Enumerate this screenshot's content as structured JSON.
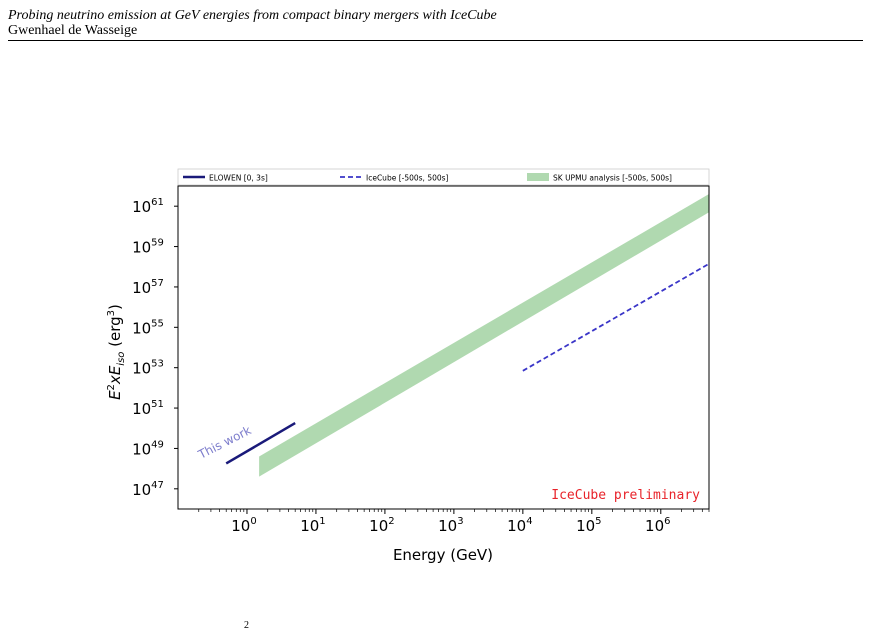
{
  "header": {
    "title": "Probing neutrino emission at GeV energies from compact binary mergers with IceCube",
    "author": "Gwenhael de Wasseige"
  },
  "chart_data": {
    "type": "line",
    "xlabel": "Energy (GeV)",
    "ylabel_parts": {
      "base": "E",
      "sup1": "2",
      "mid": "xE",
      "sub": "iso",
      "unit": " (erg",
      "sup2": "3",
      "close": ")"
    },
    "x_scale": "log",
    "y_scale": "log",
    "xlim": [
      0.1,
      5000000
    ],
    "ylim": [
      1e+46,
      1e+62
    ],
    "x_ticks": [
      {
        "value": 1,
        "base": "10",
        "exp": "0"
      },
      {
        "value": 10,
        "base": "10",
        "exp": "1"
      },
      {
        "value": 100,
        "base": "10",
        "exp": "2"
      },
      {
        "value": 1000,
        "base": "10",
        "exp": "3"
      },
      {
        "value": 10000,
        "base": "10",
        "exp": "4"
      },
      {
        "value": 100000,
        "base": "10",
        "exp": "5"
      },
      {
        "value": 1000000,
        "base": "10",
        "exp": "6"
      }
    ],
    "y_ticks": [
      {
        "value": 1e+47,
        "base": "10",
        "exp": "47"
      },
      {
        "value": 1e+49,
        "base": "10",
        "exp": "49"
      },
      {
        "value": 1e+51,
        "base": "10",
        "exp": "51"
      },
      {
        "value": 1e+53,
        "base": "10",
        "exp": "53"
      },
      {
        "value": 1e+55,
        "base": "10",
        "exp": "55"
      },
      {
        "value": 1e+57,
        "base": "10",
        "exp": "57"
      },
      {
        "value": 1e+59,
        "base": "10",
        "exp": "59"
      },
      {
        "value": 1e+61,
        "base": "10",
        "exp": "61"
      }
    ],
    "legend_position": "top",
    "series": [
      {
        "name": "ELOWEN [0, 3s]",
        "style": "solid",
        "color": "#1a1a7a",
        "points": [
          [
            0.5,
            1.8e+48
          ],
          [
            5,
            1.8e+50
          ]
        ]
      },
      {
        "name": "IceCube [-500s, 500s]",
        "style": "dashed",
        "color": "#3a35c8",
        "points": [
          [
            10000,
            7e+52
          ],
          [
            5000000,
            1.4e+58
          ]
        ]
      },
      {
        "name": "SK UPMU analysis [-500s, 500s]",
        "style": "band",
        "color": "#8ec98e",
        "lower": [
          [
            1.5,
            4e+47
          ],
          [
            5000000,
            5e+60
          ]
        ],
        "upper": [
          [
            1.5,
            4e+48
          ],
          [
            5000000,
            4e+61
          ]
        ]
      }
    ],
    "annotations": [
      {
        "text": "This work",
        "color": "#7d7dcc"
      },
      {
        "text": "IceCube preliminary",
        "color": "#e8232a"
      }
    ]
  },
  "figure_number_fragment": "2"
}
